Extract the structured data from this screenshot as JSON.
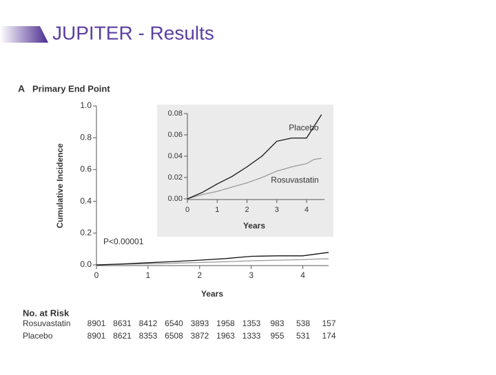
{
  "slide": {
    "title": "JUPITER - Results"
  },
  "chart_data": [
    {
      "type": "line",
      "panel": "A",
      "title": "Primary End Point",
      "ylabel": "Cumulative Incidence",
      "xlabel": "Years",
      "annotation": "P<0.00001",
      "xlim": [
        0,
        4.5
      ],
      "xticks": [
        0,
        1,
        2,
        3,
        4
      ],
      "ylim": [
        0,
        1
      ],
      "yticks": [
        {
          "value": 0,
          "label": "0.0"
        },
        0.2,
        0.4,
        0.6,
        0.8,
        {
          "value": 1,
          "label": "1.0"
        }
      ],
      "x": [
        0,
        0.5,
        1,
        1.5,
        2,
        2.5,
        3,
        3.5,
        4,
        4.25,
        4.5
      ],
      "series": [
        {
          "color": "#999999",
          "values": [
            0,
            0.004,
            0.007,
            0.011,
            0.015,
            0.02,
            0.026,
            0.03,
            0.033,
            0.037,
            0.038
          ]
        },
        {
          "color": "#111111",
          "values": [
            0,
            0.006,
            0.014,
            0.021,
            0.03,
            0.04,
            0.054,
            0.057,
            0.057,
            0.068,
            0.079
          ]
        }
      ]
    },
    {
      "type": "line",
      "xlabel": "Years",
      "xlim": [
        0,
        4.6
      ],
      "xticks": [
        0,
        1,
        2,
        3,
        4
      ],
      "ylim": [
        0,
        0.08
      ],
      "yticks": [
        {
          "value": 0,
          "label": "0.00"
        },
        0.02,
        0.04,
        0.06,
        0.08
      ],
      "x": [
        0,
        0.5,
        1,
        1.5,
        2,
        2.5,
        3,
        3.5,
        4,
        4.25,
        4.5
      ],
      "series": [
        {
          "name": "Rosuvastatin",
          "color": "#999999",
          "values": [
            0,
            0.004,
            0.007,
            0.011,
            0.015,
            0.02,
            0.026,
            0.03,
            0.033,
            0.037,
            0.038
          ]
        },
        {
          "name": "Placebo",
          "color": "#111111",
          "values": [
            0,
            0.006,
            0.014,
            0.021,
            0.03,
            0.04,
            0.054,
            0.057,
            0.057,
            0.068,
            0.079
          ]
        }
      ]
    }
  ],
  "risk_table": {
    "title": "No. at Risk",
    "rows": [
      [
        "Rosuvastatin",
        8901,
        8631,
        8412,
        6540,
        3893,
        1958,
        1353,
        983,
        538,
        157
      ],
      [
        "Placebo",
        8901,
        8621,
        8353,
        6508,
        3872,
        1963,
        1333,
        955,
        531,
        174
      ]
    ]
  }
}
